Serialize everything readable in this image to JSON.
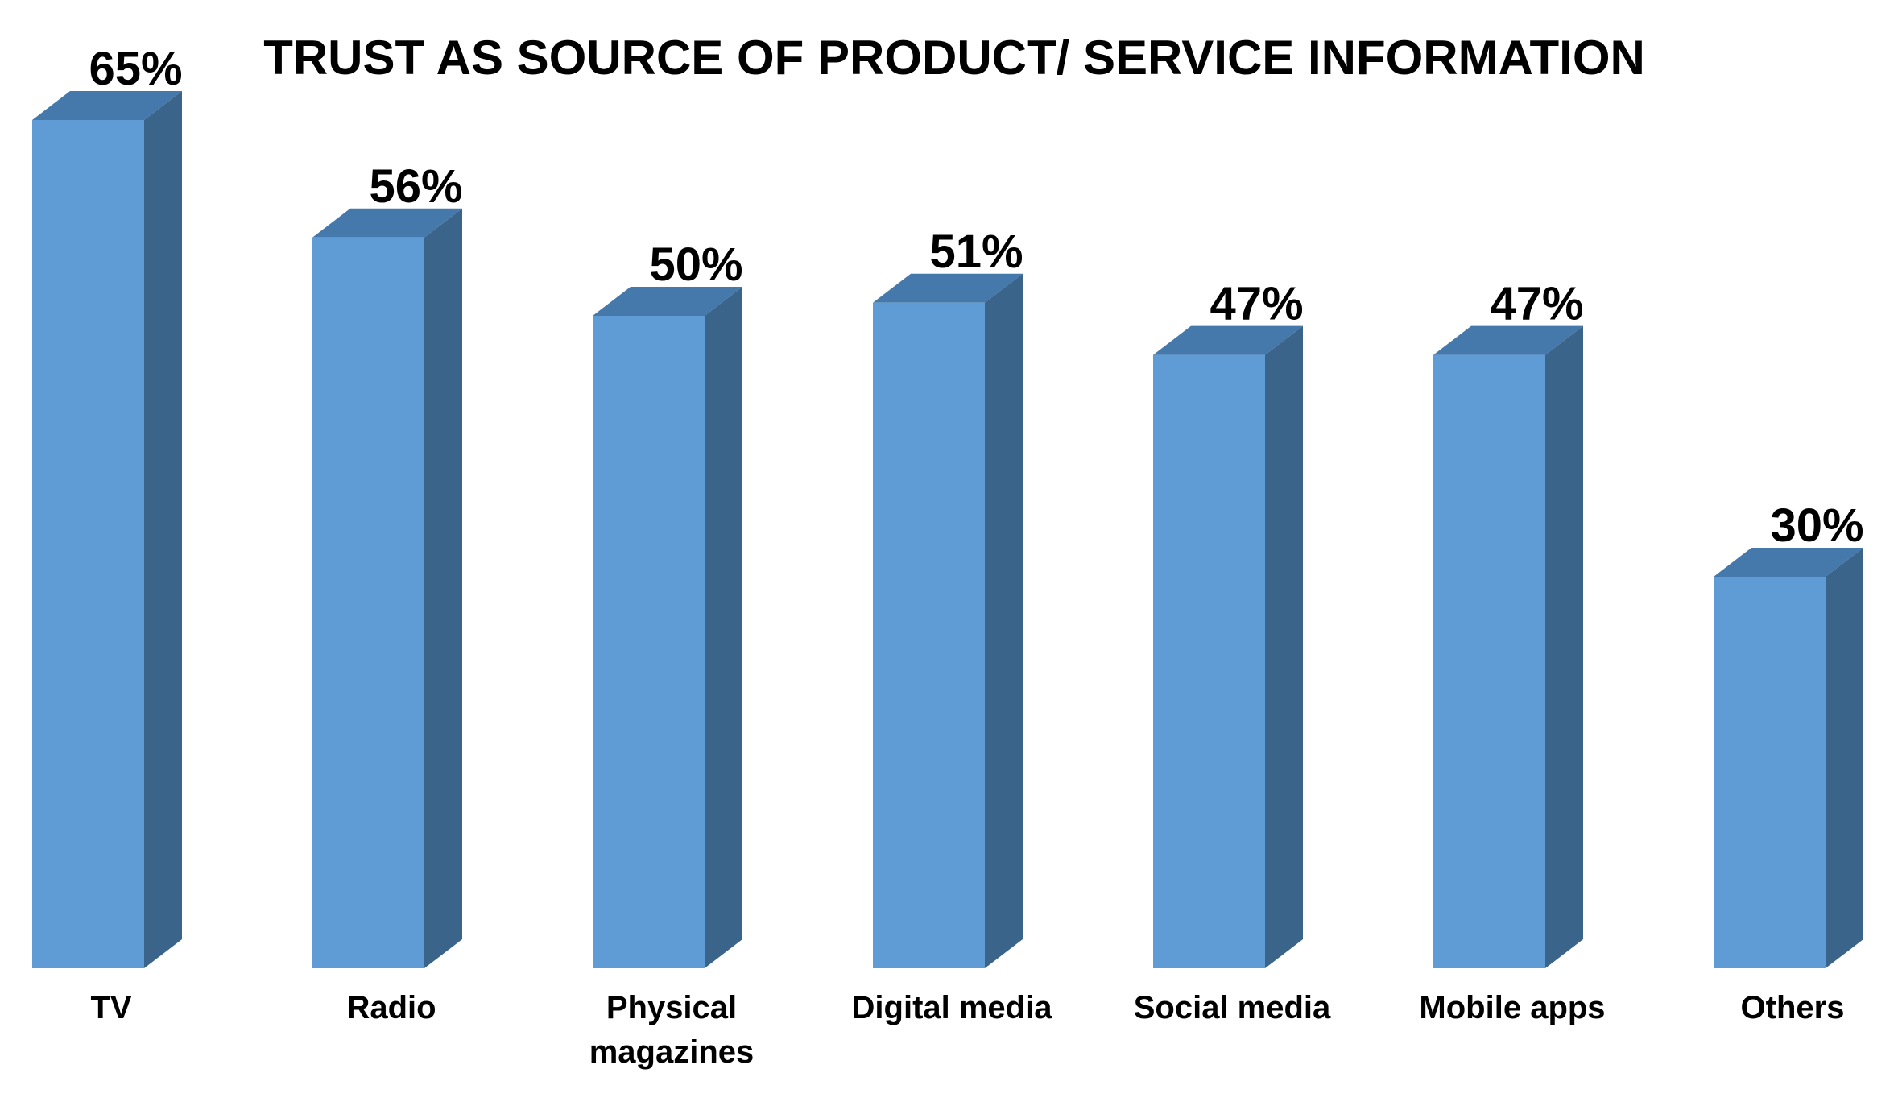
{
  "chart_data": {
    "type": "bar",
    "style": "3d-columns",
    "title": "TRUST AS SOURCE OF PRODUCT/ SERVICE INFORMATION",
    "xlabel": "",
    "ylabel": "",
    "ylim": [
      0,
      70
    ],
    "grid": false,
    "legend": "none",
    "categories": [
      "TV",
      "Radio",
      "Physical magazines",
      "Digital media",
      "Social media",
      "Mobile apps",
      "Others"
    ],
    "category_lines": [
      [
        "TV"
      ],
      [
        "Radio"
      ],
      [
        "Physical",
        "magazines"
      ],
      [
        "Digital media"
      ],
      [
        "Social media"
      ],
      [
        "Mobile apps"
      ],
      [
        "Others"
      ]
    ],
    "values": [
      65,
      56,
      50,
      51,
      47,
      47,
      30
    ],
    "data_labels": [
      "65%",
      "56%",
      "50%",
      "51%",
      "47%",
      "47%",
      "30%"
    ],
    "colors": {
      "front": "#5f9bd4",
      "top": "#4679ab",
      "side": "#3a6489",
      "text": "#000000"
    }
  }
}
